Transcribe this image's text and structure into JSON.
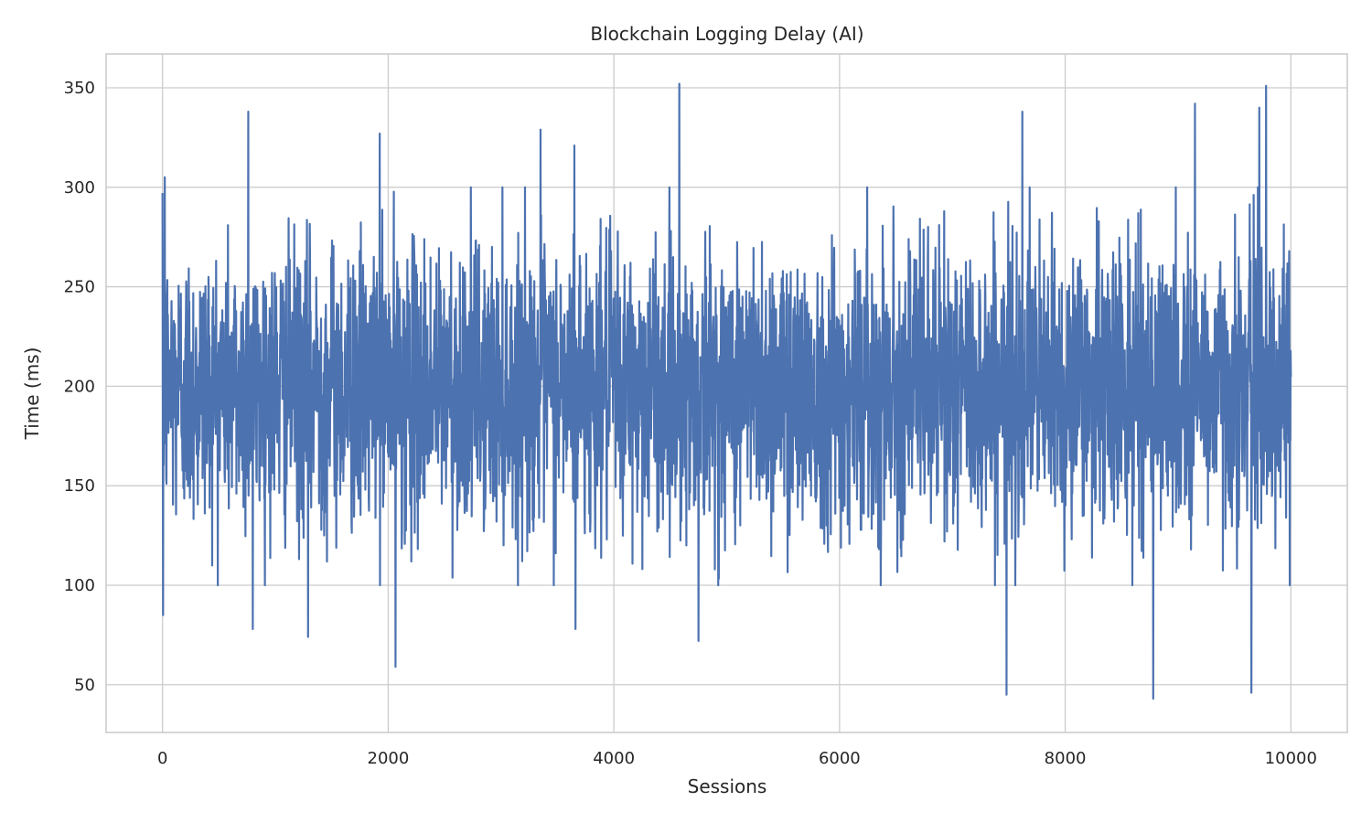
{
  "chart_data": {
    "type": "line",
    "title": "Blockchain Logging Delay (AI)",
    "xlabel": "Sessions",
    "ylabel": "Time (ms)",
    "xlim": [
      -500,
      10500
    ],
    "ylim": [
      26,
      367
    ],
    "xticks": [
      0,
      2000,
      4000,
      6000,
      8000,
      10000
    ],
    "yticks": [
      50,
      100,
      150,
      200,
      250,
      300,
      350
    ],
    "grid": true,
    "legend": "none",
    "series": [
      {
        "color": "#4c72b0",
        "x_range": [
          0,
          10000
        ],
        "mean": 200,
        "band_low": 130,
        "band_high": 270,
        "notable_points": [
          {
            "x": 5,
            "y": 85
          },
          {
            "x": 20,
            "y": 305
          },
          {
            "x": 760,
            "y": 338
          },
          {
            "x": 800,
            "y": 78
          },
          {
            "x": 1290,
            "y": 74
          },
          {
            "x": 1925,
            "y": 327
          },
          {
            "x": 2065,
            "y": 59
          },
          {
            "x": 3350,
            "y": 329
          },
          {
            "x": 3650,
            "y": 321
          },
          {
            "x": 3660,
            "y": 78
          },
          {
            "x": 4580,
            "y": 352
          },
          {
            "x": 4750,
            "y": 72
          },
          {
            "x": 7480,
            "y": 45
          },
          {
            "x": 7620,
            "y": 338
          },
          {
            "x": 8780,
            "y": 43
          },
          {
            "x": 9150,
            "y": 342
          },
          {
            "x": 9650,
            "y": 46
          },
          {
            "x": 9720,
            "y": 340
          },
          {
            "x": 9780,
            "y": 351
          }
        ]
      }
    ]
  }
}
